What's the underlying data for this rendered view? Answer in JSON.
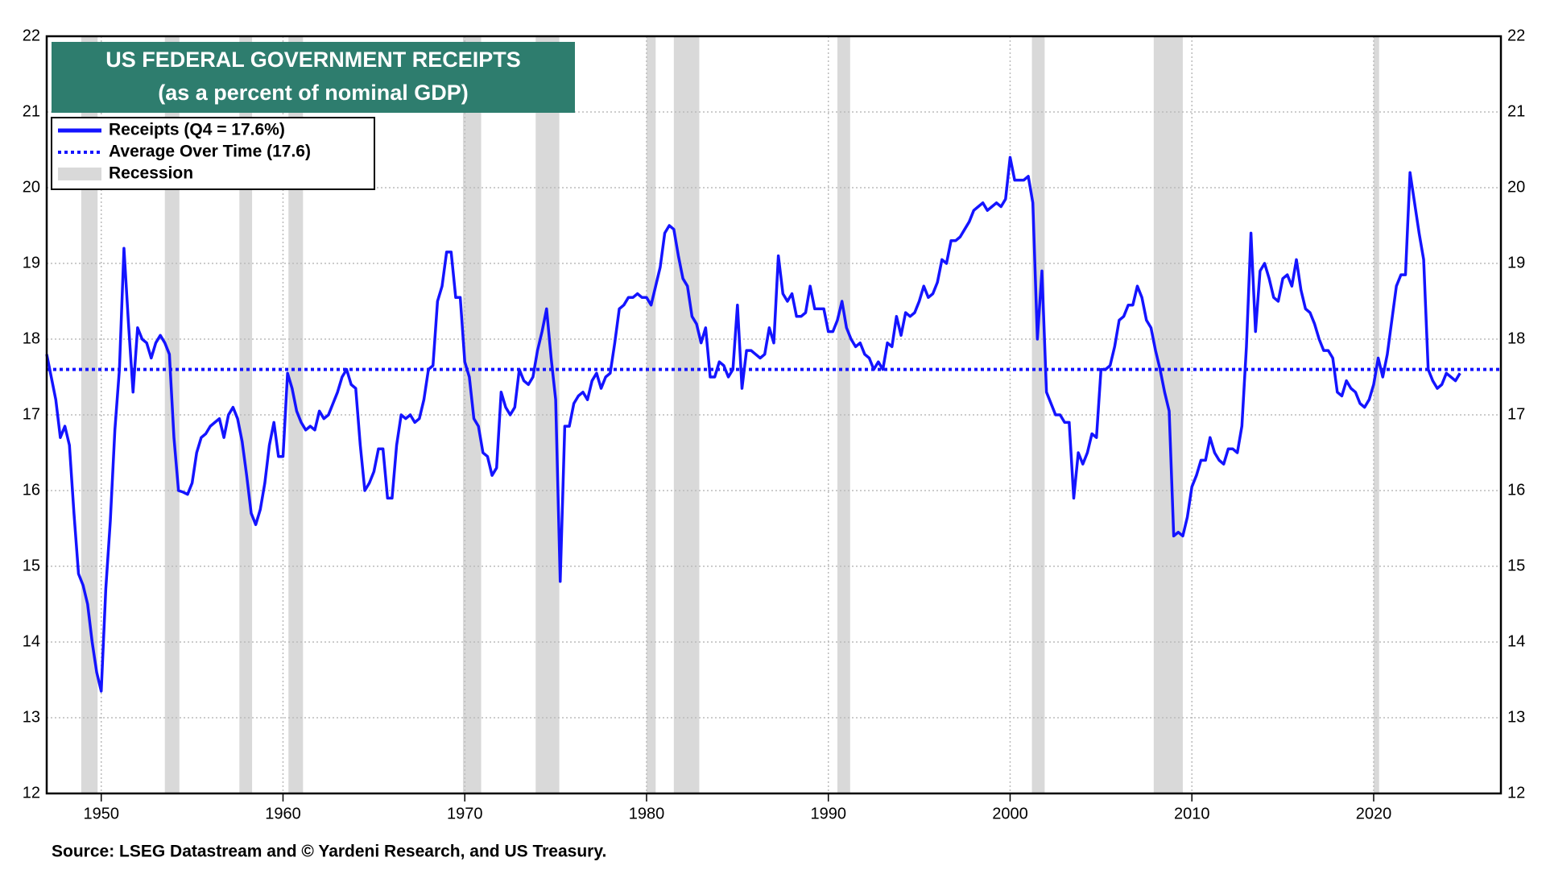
{
  "chart_data": {
    "type": "line",
    "title": "US FEDERAL GOVERNMENT  RECEIPTS",
    "subtitle": "(as a percent of nominal GDP)",
    "source": "Source: LSEG Datastream and © Yardeni Research, and US Treasury.",
    "xlim": [
      1947,
      2027
    ],
    "ylim": [
      12,
      22
    ],
    "xticks": [
      1950,
      1960,
      1970,
      1980,
      1990,
      2000,
      2010,
      2020
    ],
    "yticks": [
      12,
      13,
      14,
      15,
      16,
      17,
      18,
      19,
      20,
      21,
      22
    ],
    "grid": true,
    "x": [
      1947,
      1947.25,
      1947.5,
      1947.75,
      1948,
      1948.25,
      1948.5,
      1948.75,
      1949,
      1949.25,
      1949.5,
      1949.75,
      1950,
      1950.25,
      1950.5,
      1950.75,
      1951,
      1951.25,
      1951.5,
      1951.75,
      1952,
      1952.25,
      1952.5,
      1952.75,
      1953,
      1953.25,
      1953.5,
      1953.75,
      1954,
      1954.25,
      1954.5,
      1954.75,
      1955,
      1955.25,
      1955.5,
      1955.75,
      1956,
      1956.25,
      1956.5,
      1956.75,
      1957,
      1957.25,
      1957.5,
      1957.75,
      1958,
      1958.25,
      1958.5,
      1958.75,
      1959,
      1959.25,
      1959.5,
      1959.75,
      1960,
      1960.25,
      1960.5,
      1960.75,
      1961,
      1961.25,
      1961.5,
      1961.75,
      1962,
      1962.25,
      1962.5,
      1962.75,
      1963,
      1963.25,
      1963.5,
      1963.75,
      1964,
      1964.25,
      1964.5,
      1964.75,
      1965,
      1965.25,
      1965.5,
      1965.75,
      1966,
      1966.25,
      1966.5,
      1966.75,
      1967,
      1967.25,
      1967.5,
      1967.75,
      1968,
      1968.25,
      1968.5,
      1968.75,
      1969,
      1969.25,
      1969.5,
      1969.75,
      1970,
      1970.25,
      1970.5,
      1970.75,
      1971,
      1971.25,
      1971.5,
      1971.75,
      1972,
      1972.25,
      1972.5,
      1972.75,
      1973,
      1973.25,
      1973.5,
      1973.75,
      1974,
      1974.25,
      1974.5,
      1974.75,
      1975,
      1975.25,
      1975.5,
      1975.75,
      1976,
      1976.25,
      1976.5,
      1976.75,
      1977,
      1977.25,
      1977.5,
      1977.75,
      1978,
      1978.25,
      1978.5,
      1978.75,
      1979,
      1979.25,
      1979.5,
      1979.75,
      1980,
      1980.25,
      1980.5,
      1980.75,
      1981,
      1981.25,
      1981.5,
      1981.75,
      1982,
      1982.25,
      1982.5,
      1982.75,
      1983,
      1983.25,
      1983.5,
      1983.75,
      1984,
      1984.25,
      1984.5,
      1984.75,
      1985,
      1985.25,
      1985.5,
      1985.75,
      1986,
      1986.25,
      1986.5,
      1986.75,
      1987,
      1987.25,
      1987.5,
      1987.75,
      1988,
      1988.25,
      1988.5,
      1988.75,
      1989,
      1989.25,
      1989.5,
      1989.75,
      1990,
      1990.25,
      1990.5,
      1990.75,
      1991,
      1991.25,
      1991.5,
      1991.75,
      1992,
      1992.25,
      1992.5,
      1992.75,
      1993,
      1993.25,
      1993.5,
      1993.75,
      1994,
      1994.25,
      1994.5,
      1994.75,
      1995,
      1995.25,
      1995.5,
      1995.75,
      1996,
      1996.25,
      1996.5,
      1996.75,
      1997,
      1997.25,
      1997.5,
      1997.75,
      1998,
      1998.25,
      1998.5,
      1998.75,
      1999,
      1999.25,
      1999.5,
      1999.75,
      2000,
      2000.25,
      2000.5,
      2000.75,
      2001,
      2001.25,
      2001.5,
      2001.75,
      2002,
      2002.25,
      2002.5,
      2002.75,
      2003,
      2003.25,
      2003.5,
      2003.75,
      2004,
      2004.25,
      2004.5,
      2004.75,
      2005,
      2005.25,
      2005.5,
      2005.75,
      2006,
      2006.25,
      2006.5,
      2006.75,
      2007,
      2007.25,
      2007.5,
      2007.75,
      2008,
      2008.25,
      2008.5,
      2008.75,
      2009,
      2009.25,
      2009.5,
      2009.75,
      2010,
      2010.25,
      2010.5,
      2010.75,
      2011,
      2011.25,
      2011.5,
      2011.75,
      2012,
      2012.25,
      2012.5,
      2012.75,
      2013,
      2013.25,
      2013.5,
      2013.75,
      2014,
      2014.25,
      2014.5,
      2014.75,
      2015,
      2015.25,
      2015.5,
      2015.75,
      2016,
      2016.25,
      2016.5,
      2016.75,
      2017,
      2017.25,
      2017.5,
      2017.75,
      2018,
      2018.25,
      2018.5,
      2018.75,
      2019,
      2019.25,
      2019.5,
      2019.75,
      2020,
      2020.25,
      2020.5,
      2020.75,
      2021,
      2021.25,
      2021.5,
      2021.75,
      2022,
      2022.25,
      2022.5,
      2022.75,
      2023,
      2023.25,
      2023.5,
      2023.75,
      2024,
      2024.25,
      2024.5,
      2024.75
    ],
    "series": [
      {
        "name": "Receipts (Q4 = 17.6%)",
        "color": "#1414ff",
        "values": [
          17.8,
          17.5,
          17.2,
          16.7,
          16.85,
          16.6,
          15.7,
          14.9,
          14.75,
          14.5,
          14.0,
          13.6,
          13.35,
          14.7,
          15.6,
          16.8,
          17.6,
          19.2,
          18.2,
          17.3,
          18.15,
          18.0,
          17.95,
          17.75,
          17.95,
          18.05,
          17.95,
          17.8,
          16.7,
          16.0,
          15.98,
          15.95,
          16.1,
          16.5,
          16.7,
          16.75,
          16.85,
          16.9,
          16.95,
          16.7,
          17.0,
          17.1,
          16.95,
          16.65,
          16.2,
          15.7,
          15.55,
          15.75,
          16.1,
          16.6,
          16.9,
          16.45,
          16.45,
          17.55,
          17.35,
          17.05,
          16.9,
          16.8,
          16.85,
          16.8,
          17.05,
          16.95,
          17.0,
          17.15,
          17.3,
          17.5,
          17.6,
          17.4,
          17.35,
          16.6,
          16.0,
          16.1,
          16.25,
          16.55,
          16.55,
          15.9,
          15.9,
          16.6,
          17.0,
          16.95,
          17.0,
          16.9,
          16.95,
          17.2,
          17.6,
          17.65,
          18.5,
          18.7,
          19.15,
          19.15,
          18.55,
          18.55,
          17.7,
          17.5,
          16.95,
          16.85,
          16.5,
          16.45,
          16.2,
          16.3,
          17.3,
          17.1,
          17.0,
          17.1,
          17.6,
          17.45,
          17.4,
          17.5,
          17.85,
          18.1,
          18.4,
          17.75,
          17.2,
          14.8,
          16.85,
          16.85,
          17.15,
          17.25,
          17.3,
          17.2,
          17.45,
          17.55,
          17.35,
          17.5,
          17.55,
          17.95,
          18.4,
          18.45,
          18.55,
          18.55,
          18.6,
          18.55,
          18.55,
          18.45,
          18.7,
          18.95,
          19.4,
          19.5,
          19.45,
          19.1,
          18.8,
          18.7,
          18.3,
          18.2,
          17.95,
          18.15,
          17.5,
          17.5,
          17.7,
          17.65,
          17.5,
          17.6,
          18.45,
          17.35,
          17.85,
          17.85,
          17.8,
          17.75,
          17.8,
          18.15,
          17.95,
          19.1,
          18.6,
          18.5,
          18.6,
          18.3,
          18.3,
          18.35,
          18.7,
          18.4,
          18.4,
          18.4,
          18.1,
          18.1,
          18.25,
          18.5,
          18.15,
          18.0,
          17.9,
          17.95,
          17.8,
          17.75,
          17.6,
          17.7,
          17.6,
          17.95,
          17.9,
          18.3,
          18.05,
          18.35,
          18.3,
          18.35,
          18.5,
          18.7,
          18.55,
          18.6,
          18.75,
          19.05,
          19.0,
          19.3,
          19.3,
          19.35,
          19.45,
          19.55,
          19.7,
          19.75,
          19.8,
          19.7,
          19.75,
          19.8,
          19.75,
          19.85,
          20.4,
          20.1,
          20.1,
          20.1,
          20.15,
          19.8,
          18.0,
          18.9,
          17.3,
          17.15,
          17.0,
          17.0,
          16.9,
          16.9,
          15.9,
          16.5,
          16.35,
          16.5,
          16.75,
          16.7,
          17.6,
          17.6,
          17.65,
          17.9,
          18.25,
          18.3,
          18.45,
          18.45,
          18.7,
          18.55,
          18.25,
          18.15,
          17.85,
          17.6,
          17.3,
          17.05,
          15.4,
          15.45,
          15.4,
          15.65,
          16.05,
          16.2,
          16.4,
          16.4,
          16.7,
          16.5,
          16.4,
          16.35,
          16.55,
          16.55,
          16.5,
          16.85,
          17.9,
          19.4,
          18.1,
          18.9,
          19.0,
          18.8,
          18.55,
          18.5,
          18.8,
          18.85,
          18.7,
          19.05,
          18.65,
          18.4,
          18.35,
          18.2,
          18.0,
          17.85,
          17.85,
          17.75,
          17.3,
          17.25,
          17.45,
          17.35,
          17.3,
          17.15,
          17.1,
          17.2,
          17.4,
          17.75,
          17.5,
          17.8,
          18.25,
          18.7,
          18.85,
          18.85,
          20.2,
          19.8,
          19.4,
          19.05,
          17.6,
          17.45,
          17.35,
          17.4,
          17.55,
          17.5,
          17.45,
          17.55
        ]
      }
    ],
    "average": {
      "name": "Average Over Time (17.6)",
      "value": 17.6,
      "color": "#1414ff"
    },
    "recessions": {
      "name": "Recession",
      "color": "#d9d9d9",
      "spans": [
        [
          1948.9,
          1949.8
        ],
        [
          1953.5,
          1954.3
        ],
        [
          1957.6,
          1958.3
        ],
        [
          1960.3,
          1961.1
        ],
        [
          1969.9,
          1970.9
        ],
        [
          1973.9,
          1975.2
        ],
        [
          1980.0,
          1980.5
        ],
        [
          1981.5,
          1982.9
        ],
        [
          1990.5,
          1991.2
        ],
        [
          2001.2,
          2001.9
        ],
        [
          2007.9,
          2009.5
        ],
        [
          2020.0,
          2020.3
        ]
      ]
    }
  }
}
